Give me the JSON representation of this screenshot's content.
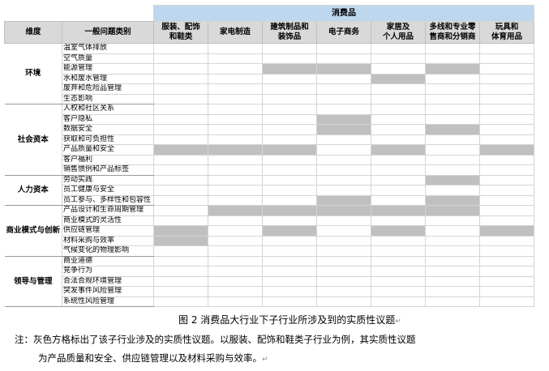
{
  "table": {
    "group_header": "消费品",
    "col_dimension": "维度",
    "col_issue": "一般问题类别",
    "industries": [
      "服装、配饰\n和鞋类",
      "家电制造",
      "建筑制品和\n装饰品",
      "电子商务",
      "家居及\n个人用品",
      "多线和专业零\n售商和分销商",
      "玩具和\n体育用品"
    ],
    "groups": [
      {
        "dimension": "环境",
        "rows": [
          {
            "issue": "温室气体排放",
            "marks": [
              0,
              0,
              0,
              0,
              0,
              0,
              0
            ]
          },
          {
            "issue": "空气质量",
            "marks": [
              0,
              0,
              0,
              0,
              0,
              0,
              0
            ]
          },
          {
            "issue": "能源管理",
            "marks": [
              0,
              0,
              1,
              1,
              0,
              1,
              0
            ]
          },
          {
            "issue": "水和废水管理",
            "marks": [
              0,
              0,
              0,
              0,
              1,
              0,
              0
            ]
          },
          {
            "issue": "废弃和危险品管理",
            "marks": [
              0,
              0,
              0,
              0,
              0,
              0,
              0
            ]
          },
          {
            "issue": "生态影响",
            "marks": [
              0,
              0,
              0,
              0,
              0,
              0,
              0
            ]
          }
        ]
      },
      {
        "dimension": "社会资本",
        "rows": [
          {
            "issue": "人权和社区关系",
            "marks": [
              0,
              0,
              0,
              0,
              0,
              0,
              0
            ]
          },
          {
            "issue": "客户隐私",
            "marks": [
              0,
              0,
              0,
              1,
              0,
              0,
              0
            ]
          },
          {
            "issue": "数据安全",
            "marks": [
              0,
              0,
              0,
              1,
              0,
              1,
              0
            ]
          },
          {
            "issue": "获取和可负担性",
            "marks": [
              0,
              0,
              0,
              0,
              0,
              0,
              0
            ]
          },
          {
            "issue": "产品质量和安全",
            "marks": [
              1,
              1,
              1,
              0,
              1,
              0,
              1
            ]
          },
          {
            "issue": "客户福利",
            "marks": [
              0,
              0,
              0,
              0,
              0,
              0,
              0
            ]
          },
          {
            "issue": "销售惯例和产品标签",
            "marks": [
              0,
              0,
              0,
              0,
              0,
              0,
              0
            ]
          }
        ]
      },
      {
        "dimension": "人力资本",
        "rows": [
          {
            "issue": "劳动实践",
            "marks": [
              0,
              0,
              0,
              0,
              0,
              1,
              0
            ]
          },
          {
            "issue": "员工健康与安全",
            "marks": [
              0,
              0,
              0,
              0,
              0,
              0,
              0
            ]
          },
          {
            "issue": "员工参与、多样性和包容性",
            "marks": [
              0,
              0,
              0,
              1,
              0,
              1,
              0
            ]
          }
        ]
      },
      {
        "dimension": "商业模式与创新",
        "rows": [
          {
            "issue": "产品设计和生命周期管理",
            "marks": [
              0,
              1,
              1,
              1,
              1,
              1,
              0
            ]
          },
          {
            "issue": "商业模式的灵活性",
            "marks": [
              0,
              0,
              0,
              0,
              0,
              0,
              0
            ]
          },
          {
            "issue": "供应链管理",
            "marks": [
              1,
              0,
              1,
              0,
              1,
              0,
              1
            ]
          },
          {
            "issue": "材料采购与效率",
            "marks": [
              1,
              0,
              0,
              0,
              0,
              0,
              0
            ]
          },
          {
            "issue": "气候变化的物理影响",
            "marks": [
              0,
              0,
              0,
              0,
              0,
              0,
              0
            ]
          }
        ]
      },
      {
        "dimension": "领导与管理",
        "rows": [
          {
            "issue": "商业道德",
            "marks": [
              0,
              0,
              0,
              0,
              0,
              0,
              0
            ]
          },
          {
            "issue": "竞争行为",
            "marks": [
              0,
              0,
              0,
              0,
              0,
              0,
              0
            ]
          },
          {
            "issue": "合法合规环境管理",
            "marks": [
              0,
              0,
              0,
              0,
              0,
              0,
              0
            ]
          },
          {
            "issue": "突发事件风险管理",
            "marks": [
              0,
              0,
              0,
              0,
              0,
              0,
              0
            ]
          },
          {
            "issue": "系统性风险管理",
            "marks": [
              0,
              0,
              0,
              0,
              0,
              0,
              0
            ]
          }
        ]
      }
    ],
    "mark_color": "#c0c0c0",
    "header_blue": "#bdd7ee"
  },
  "caption": "图 2  消费品大行业下子行业所涉及到的实质性议题",
  "note_line1": "注：灰色方格标出了该子行业涉及的实质性议题。以服装、配饰和鞋类子行业为例，其实质性议题",
  "note_line2": "为产品质量和安全、供应链管理以及材料采购与效率。",
  "return_mark": "↵"
}
